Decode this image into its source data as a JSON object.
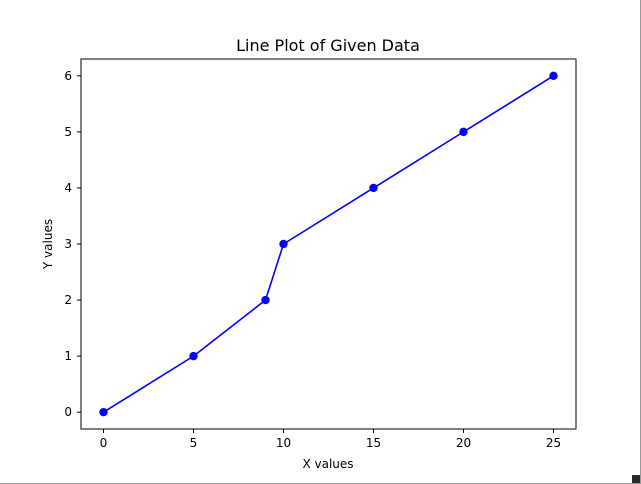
{
  "chart_data": {
    "type": "line",
    "title": "Line Plot of Given Data",
    "xlabel": "X values",
    "ylabel": "Y values",
    "xlim": [
      -1.25,
      26.25
    ],
    "ylim": [
      -0.3,
      6.3
    ],
    "xticks": [
      0,
      5,
      10,
      15,
      20,
      25
    ],
    "yticks": [
      0,
      1,
      2,
      3,
      4,
      5,
      6
    ],
    "grid": false,
    "series": [
      {
        "color": "#0000ff",
        "marker": "circle",
        "x": [
          0,
          5,
          9,
          10,
          15,
          20,
          25
        ],
        "y": [
          0,
          1,
          2,
          3,
          4,
          5,
          6
        ]
      }
    ]
  }
}
